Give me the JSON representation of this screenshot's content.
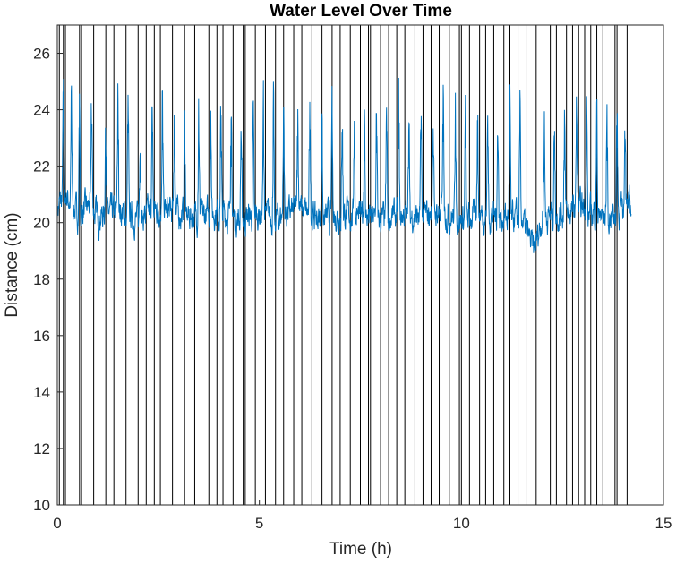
{
  "chart_data": {
    "type": "line",
    "title": "Water Level Over Time",
    "xlabel": "Time (h)",
    "ylabel": "Distance (cm)",
    "xlim": [
      0,
      15
    ],
    "ylim": [
      10,
      27
    ],
    "xticks": [
      0,
      5,
      10,
      15
    ],
    "yticks": [
      10,
      12,
      14,
      16,
      18,
      20,
      22,
      24,
      26
    ],
    "grid": false,
    "legend": "none",
    "series_color": "#0072BD",
    "dropout_color": "#000000",
    "baseline": 20.2,
    "duration": 14.2,
    "notes_dropouts_to": 10,
    "series": [
      {
        "values_summary": "noisy signal oscillating mostly between 19.5 and 21.5 cm with frequent spikes up to ~25 cm and near-vertical drops to 10 cm",
        "x": [
          0.0,
          0.2,
          0.5,
          0.8,
          1.0,
          1.5,
          2.0,
          2.5,
          3.0,
          3.5,
          4.0,
          4.5,
          5.0,
          5.5,
          6.0,
          6.5,
          7.0,
          7.5,
          8.0,
          8.5,
          9.0,
          9.5,
          10.0,
          10.5,
          11.0,
          11.5,
          11.8,
          12.0,
          12.5,
          13.0,
          13.5,
          14.0,
          14.2
        ],
        "y": [
          20.5,
          21.0,
          20.3,
          20.6,
          20.2,
          20.4,
          20.1,
          20.5,
          20.3,
          20.2,
          20.4,
          20.1,
          20.3,
          20.2,
          20.5,
          20.1,
          20.3,
          20.2,
          20.1,
          20.3,
          20.2,
          20.4,
          20.1,
          20.3,
          20.2,
          20.1,
          19.0,
          20.2,
          20.3,
          20.5,
          20.2,
          20.4,
          20.6
        ]
      }
    ],
    "dropout_times": [
      0.05,
      0.15,
      0.2,
      0.55,
      0.6,
      0.9,
      1.2,
      1.4,
      1.7,
      2.0,
      2.2,
      2.4,
      2.55,
      2.85,
      3.15,
      3.4,
      3.75,
      3.95,
      4.1,
      4.35,
      4.6,
      4.65,
      4.9,
      5.15,
      5.4,
      5.6,
      5.85,
      6.05,
      6.3,
      6.55,
      6.8,
      7.0,
      7.25,
      7.5,
      7.7,
      7.75,
      8.0,
      8.2,
      8.4,
      8.6,
      8.85,
      9.05,
      9.25,
      9.45,
      9.7,
      9.95,
      10.0,
      10.2,
      10.45,
      10.6,
      10.8,
      11.05,
      11.2,
      11.4,
      11.6,
      11.85,
      12.2,
      12.35,
      12.6,
      12.75,
      12.9,
      13.05,
      13.2,
      13.35,
      13.5,
      13.8,
      13.85,
      14.1
    ],
    "spike_times": [
      0.15,
      0.35,
      0.55,
      0.85,
      1.2,
      1.5,
      1.75,
      2.05,
      2.35,
      2.6,
      2.9,
      3.15,
      3.5,
      3.8,
      4.05,
      4.3,
      4.55,
      4.85,
      5.1,
      5.35,
      5.6,
      5.95,
      6.25,
      6.55,
      6.8,
      7.05,
      7.35,
      7.6,
      7.9,
      8.15,
      8.45,
      8.7,
      9.0,
      9.3,
      9.55,
      9.85,
      10.1,
      10.4,
      10.65,
      10.9,
      11.2,
      11.45,
      12.05,
      12.3,
      12.55,
      12.85,
      13.1,
      13.35,
      13.6,
      13.85,
      14.05
    ]
  }
}
